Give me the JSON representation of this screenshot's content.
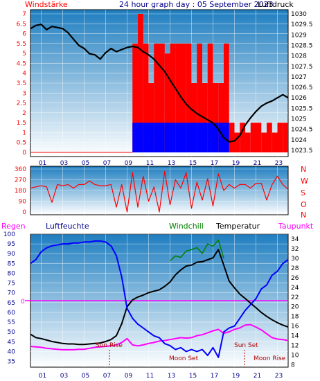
{
  "colors": {
    "red": "#ff0000",
    "blue": "#0000ff",
    "black": "#000000",
    "navy": "#00008b",
    "magenta": "#ff00ff",
    "green": "#008000",
    "darkred": "#b00000",
    "grid": "#ffffff",
    "sky_top": "#1f7ec0",
    "sky_bottom": "#ffffff"
  },
  "header": {
    "left": "Windstärke",
    "center": "24 hour graph day : 05 September 2023",
    "right": "Luftdruck"
  },
  "x_ticks": [
    "01",
    "03",
    "05",
    "07",
    "09",
    "11",
    "13",
    "15",
    "17",
    "19",
    "21",
    "23"
  ],
  "chart_data": [
    {
      "type": "line",
      "title": "24 hour graph day : 05 September 2023",
      "x_range": [
        0,
        24
      ],
      "y_left_label": "Windstärke",
      "y_right_label": "Luftdruck",
      "y_left_ticks": [
        "0",
        "0.5",
        "1",
        "1.5",
        "2",
        "2.5",
        "3",
        "3.5",
        "4",
        "4.5",
        "5",
        "5.5",
        "6",
        "6.5",
        "7"
      ],
      "y_right_ticks": [
        "1023.5",
        "1024",
        "1024.5",
        "1025",
        "1025.5",
        "1026",
        "1026.5",
        "1027",
        "1027.5",
        "1028",
        "1028.5",
        "1029",
        "1029.5",
        "1030"
      ],
      "y_left_range": [
        0,
        7
      ],
      "y_right_range": [
        1023.2,
        1030.2
      ],
      "series": [
        {
          "name": "Luftdruck",
          "color": "#000000",
          "x": [
            0,
            0.5,
            1,
            1.5,
            2,
            2.5,
            3,
            3.5,
            4,
            4.5,
            5,
            5.5,
            6,
            6.5,
            7,
            7.5,
            8,
            8.5,
            9,
            9.5,
            10,
            10.5,
            11,
            11.5,
            12,
            12.5,
            13,
            13.5,
            14,
            14.5,
            15,
            15.5,
            16,
            16.5,
            17,
            17.5,
            18,
            18.5,
            19,
            19.5,
            20,
            20.5,
            21,
            21.5,
            22,
            22.5,
            23,
            23.5,
            24
          ],
          "values": [
            1029.3,
            1029.45,
            1029.5,
            1029.25,
            1029.4,
            1029.35,
            1029.3,
            1029.1,
            1028.8,
            1028.5,
            1028.35,
            1028.1,
            1028.05,
            1027.85,
            1028.15,
            1028.35,
            1028.2,
            1028.3,
            1028.4,
            1028.45,
            1028.4,
            1028.2,
            1028.05,
            1027.85,
            1027.55,
            1027.25,
            1026.85,
            1026.45,
            1026.05,
            1025.7,
            1025.45,
            1025.25,
            1025.1,
            1024.95,
            1024.8,
            1024.5,
            1024.1,
            1023.9,
            1023.95,
            1024.2,
            1024.7,
            1025.05,
            1025.35,
            1025.6,
            1025.75,
            1025.85,
            1026.0,
            1026.15,
            1026.0
          ]
        },
        {
          "name": "Windstärke gust",
          "color": "#ff0000",
          "kind": "bars",
          "x": [
            0,
            1,
            2,
            3,
            4,
            5,
            6,
            7,
            8,
            9,
            9.5,
            10,
            10.5,
            11,
            11.5,
            12,
            12.5,
            13,
            13.5,
            14,
            14.5,
            15,
            15.5,
            16,
            16.5,
            17,
            17.5,
            18,
            18.5,
            19,
            19.5,
            20,
            20.5,
            21,
            21.5,
            22,
            22.5,
            23,
            23.5
          ],
          "values": [
            0,
            0,
            0,
            0,
            0,
            0,
            0,
            0,
            0,
            0,
            5.5,
            7,
            5.5,
            3.5,
            5.5,
            5.5,
            5,
            5.5,
            5.5,
            5.5,
            5.5,
            3.5,
            5.5,
            3.5,
            5.5,
            3.5,
            3.5,
            5.5,
            1.5,
            1,
            1.5,
            1,
            1.5,
            1.5,
            1,
            1.5,
            1,
            1.5,
            1.5
          ]
        },
        {
          "name": "Windstärke mean",
          "color": "#0000ff",
          "kind": "bars",
          "x": [
            0,
            1,
            2,
            3,
            4,
            5,
            6,
            7,
            8,
            9,
            9.5,
            10,
            10.5,
            11,
            11.5,
            12,
            12.5,
            13,
            13.5,
            14,
            14.5,
            15,
            15.5,
            16,
            16.5,
            17,
            17.5,
            18,
            18.5,
            19,
            19.5,
            20,
            20.5,
            21,
            21.5,
            22,
            22.5,
            23,
            23.5
          ],
          "values": [
            0,
            0,
            0,
            0,
            0,
            0,
            0,
            0,
            0,
            0,
            1.5,
            1.5,
            1.5,
            1.5,
            1.5,
            1.5,
            1.5,
            1.5,
            1.5,
            1.5,
            1.5,
            1.5,
            1.5,
            1.5,
            1.5,
            1.5,
            1.5,
            1.5,
            0,
            0,
            0,
            0,
            0,
            0,
            0,
            0,
            0,
            0,
            0
          ]
        }
      ]
    },
    {
      "type": "line",
      "y_left_ticks": [
        "360",
        "270",
        "180",
        "90",
        "0"
      ],
      "y_right_ticks": [
        "N",
        "W",
        "S",
        "O",
        "N"
      ],
      "y_range": [
        0,
        360
      ],
      "series": [
        {
          "name": "Windrichtung",
          "color": "#ff0000",
          "x": [
            0,
            0.5,
            1,
            1.5,
            2,
            2.5,
            3,
            3.5,
            4,
            4.5,
            5,
            5.5,
            6,
            6.5,
            7,
            7.5,
            8,
            8.5,
            9,
            9.5,
            10,
            10.5,
            11,
            11.5,
            12,
            12.5,
            13,
            13.5,
            14,
            14.5,
            15,
            15.5,
            16,
            16.5,
            17,
            17.5,
            18,
            18.5,
            19,
            19.5,
            20,
            20.5,
            21,
            21.5,
            22,
            22.5,
            23,
            23.5,
            24
          ],
          "values": [
            200,
            210,
            220,
            210,
            80,
            230,
            220,
            230,
            200,
            230,
            230,
            260,
            230,
            220,
            220,
            230,
            40,
            230,
            0,
            330,
            40,
            300,
            90,
            210,
            0,
            340,
            60,
            270,
            200,
            330,
            30,
            250,
            100,
            280,
            50,
            320,
            180,
            230,
            200,
            230,
            230,
            200,
            240,
            240,
            100,
            230,
            300,
            230,
            190
          ]
        }
      ]
    },
    {
      "type": "line",
      "y_left_ticks": [
        "35",
        "40",
        "45",
        "50",
        "55",
        "60",
        "65",
        "70",
        "75",
        "80",
        "85",
        "90",
        "95",
        "100"
      ],
      "y_right_ticks": [
        "8",
        "10",
        "12",
        "14",
        "16",
        "18",
        "20",
        "22",
        "24",
        "26",
        "28",
        "30",
        "32",
        "34"
      ],
      "y_left_range": [
        32,
        100
      ],
      "y_right_range": [
        7.5,
        35
      ],
      "zero_line_label": "0",
      "legend": [
        "Regen",
        "Luftfeuchte",
        "Windchill",
        "Temperatur",
        "Taupunkt"
      ],
      "annotations": [
        "Sun Rise",
        "Moon Set",
        "Sun Set",
        "Moon Rise"
      ],
      "series": [
        {
          "name": "Luftfeuchte",
          "color": "#0000ff",
          "axis": "left",
          "x": [
            0,
            0.5,
            1,
            1.5,
            2,
            2.5,
            3,
            3.5,
            4,
            4.5,
            5,
            5.5,
            6,
            6.5,
            7,
            7.5,
            8,
            8.5,
            9,
            9.5,
            10,
            10.5,
            11,
            11.5,
            12,
            12.5,
            13,
            13.5,
            14,
            14.5,
            15,
            15.5,
            16,
            16.5,
            17,
            17.5,
            18,
            18.5,
            19,
            19.5,
            20,
            20.5,
            21,
            21.5,
            22,
            22.5,
            23,
            23.5,
            24
          ],
          "values": [
            85,
            87,
            91,
            93,
            94,
            94.5,
            95,
            95,
            95.5,
            95.5,
            96,
            96,
            96.5,
            96.5,
            96,
            94,
            89,
            78,
            62,
            57,
            54,
            52,
            50,
            48,
            47,
            44,
            43,
            41,
            42,
            40,
            41,
            40,
            41,
            38,
            42,
            37,
            50,
            52,
            53,
            57,
            61,
            64,
            67,
            72,
            74,
            79,
            81,
            85,
            87
          ]
        },
        {
          "name": "Temperatur",
          "color": "#000000",
          "axis": "right",
          "x": [
            0,
            0.5,
            1,
            1.5,
            2,
            2.5,
            3,
            3.5,
            4,
            4.5,
            5,
            5.5,
            6,
            6.5,
            7,
            7.5,
            8,
            8.5,
            9,
            9.5,
            10,
            10.5,
            11,
            11.5,
            12,
            12.5,
            13,
            13.5,
            14,
            14.5,
            15,
            15.5,
            16,
            16.5,
            17,
            17.5,
            18,
            18.5,
            19,
            19.5,
            20,
            20.5,
            21,
            21.5,
            22,
            22.5,
            23,
            23.5,
            24
          ],
          "values": [
            14.3,
            13.6,
            13.4,
            13.1,
            12.8,
            12.6,
            12.4,
            12.3,
            12.3,
            12.2,
            12.2,
            12.3,
            12.4,
            12.5,
            12.8,
            13.2,
            14.0,
            16.5,
            20.0,
            21.4,
            22.0,
            22.4,
            22.9,
            23.2,
            23.5,
            24.2,
            25.1,
            26.6,
            27.6,
            28.4,
            28.6,
            29.2,
            29.3,
            29.7,
            30.1,
            31.8,
            28.6,
            25.3,
            23.9,
            22.6,
            21.7,
            20.7,
            19.8,
            18.8,
            18.0,
            17.3,
            16.7,
            16.2,
            15.8
          ]
        },
        {
          "name": "Windchill",
          "color": "#008000",
          "axis": "right",
          "x": [
            13,
            13.5,
            14,
            14.5,
            15,
            15.5,
            16,
            16.5,
            17,
            17.5,
            18
          ],
          "values": [
            29.5,
            30.5,
            30.2,
            31.5,
            31.8,
            32.2,
            31.0,
            33.0,
            32.5,
            33.8,
            30.0
          ]
        },
        {
          "name": "Taupunkt",
          "color": "#ff00ff",
          "axis": "right",
          "x": [
            0,
            0.5,
            1,
            1.5,
            2,
            2.5,
            3,
            3.5,
            4,
            4.5,
            5,
            5.5,
            6,
            6.5,
            7,
            7.5,
            8,
            8.5,
            9,
            9.5,
            10,
            10.5,
            11,
            11.5,
            12,
            12.5,
            13,
            13.5,
            14,
            14.5,
            15,
            15.5,
            16,
            16.5,
            17,
            17.5,
            18,
            18.5,
            19,
            19.5,
            20,
            20.5,
            21,
            21.5,
            22,
            22.5,
            23,
            23.5,
            24
          ],
          "values": [
            11.8,
            11.7,
            11.6,
            11.4,
            11.3,
            11.2,
            11.1,
            11.1,
            11.1,
            11.2,
            11.2,
            11.4,
            11.6,
            11.7,
            11.8,
            11.9,
            12.1,
            12.6,
            13.4,
            12.1,
            11.9,
            12.1,
            12.4,
            12.6,
            12.9,
            13.0,
            13.2,
            13.4,
            13.6,
            13.5,
            13.6,
            14.0,
            14.2,
            14.6,
            15.0,
            15.3,
            14.5,
            14.8,
            15.3,
            15.6,
            16.2,
            16.3,
            15.8,
            15.2,
            14.4,
            13.6,
            13.3,
            13.2,
            13.0
          ]
        }
      ]
    }
  ]
}
